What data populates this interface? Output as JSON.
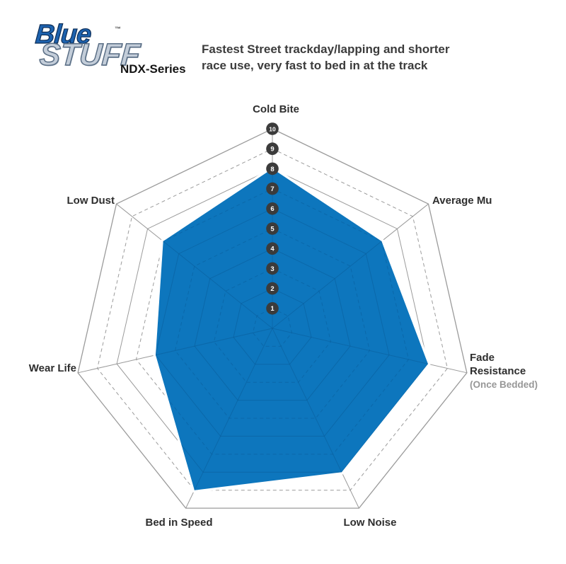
{
  "header": {
    "logo": {
      "line1": "Blue",
      "line2": "STUFF",
      "tm": "™",
      "series": "NDX-Series"
    },
    "description_line1": "Fastest Street trackday/lapping and shorter",
    "description_line2": "race use, very fast to bed in at the track"
  },
  "chart_data": {
    "type": "radar",
    "categories": [
      "Cold Bite",
      "Average Mu",
      "Fade Resistance (Once Bedded)",
      "Low Noise",
      "Bed in Speed",
      "Wear Life",
      "Low Dust"
    ],
    "values": [
      8,
      7,
      8,
      8,
      9,
      6,
      7
    ],
    "scale": {
      "min": 1,
      "max": 10,
      "ticks": [
        1,
        2,
        3,
        4,
        5,
        6,
        7,
        8,
        9,
        10
      ]
    },
    "fade_label_lines": {
      "l1": "Fade",
      "l2": "Resistance",
      "l3": "(Once Bedded)"
    },
    "grid": true,
    "legend_position": "none"
  },
  "colors": {
    "radar_fill": "#0d76bd",
    "radar_grid": "#9b9b9b",
    "radar_grid_inside": "#0a5f9c",
    "tick_circle": "#3b3b3b",
    "tick_number": "#ffffff",
    "logo_blue": "#1d62ae",
    "logo_stuff": "#c3cdd9",
    "text_dark": "#2e2e2e",
    "text_muted": "#979797"
  }
}
